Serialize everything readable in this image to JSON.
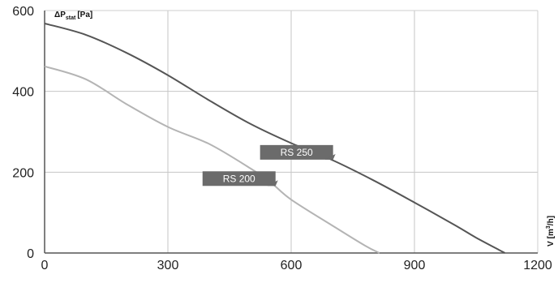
{
  "chart_data": {
    "type": "line",
    "ylabel": "ΔP",
    "ylabel_sub": "stat",
    "ylabel_unit": "[Pa]",
    "xlabel": "V",
    "xlabel_unit": "[m",
    "xlabel_unit_sup": "3",
    "xlabel_unit_tail": "/h]",
    "xlim": [
      0,
      1200
    ],
    "ylim": [
      0,
      600
    ],
    "x_ticks": [
      0,
      300,
      600,
      900,
      1200
    ],
    "y_ticks": [
      0,
      200,
      400,
      600
    ],
    "grid": true,
    "series": [
      {
        "name": "RS 250",
        "color": "#555555",
        "points": [
          [
            0,
            568
          ],
          [
            100,
            540
          ],
          [
            200,
            495
          ],
          [
            300,
            440
          ],
          [
            400,
            378
          ],
          [
            500,
            320
          ],
          [
            600,
            272
          ],
          [
            700,
            230
          ],
          [
            800,
            180
          ],
          [
            900,
            125
          ],
          [
            1000,
            68
          ],
          [
            1050,
            38
          ],
          [
            1120,
            0
          ]
        ]
      },
      {
        "name": "RS 200",
        "color": "#b4b4b4",
        "points": [
          [
            0,
            462
          ],
          [
            100,
            430
          ],
          [
            200,
            368
          ],
          [
            300,
            312
          ],
          [
            400,
            270
          ],
          [
            500,
            210
          ],
          [
            550,
            175
          ],
          [
            600,
            132
          ],
          [
            700,
            68
          ],
          [
            780,
            18
          ],
          [
            815,
            0
          ]
        ]
      }
    ],
    "callouts": [
      {
        "series": "RS 250",
        "label": "RS 250",
        "x": 700,
        "y": 225
      },
      {
        "series": "RS 200",
        "label": "RS 200",
        "x": 560,
        "y": 160
      }
    ]
  }
}
